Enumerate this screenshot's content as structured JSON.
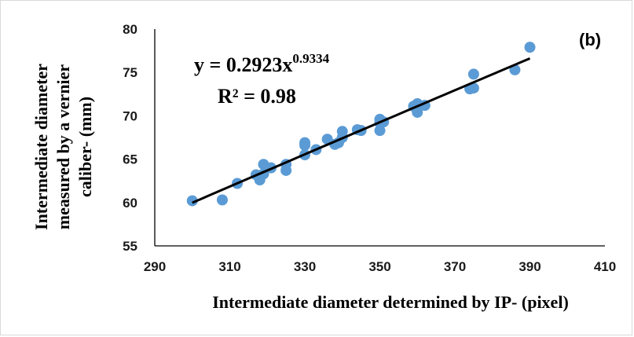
{
  "chart_data": {
    "type": "scatter",
    "panel_label": "(b)",
    "xlabel": "Intermediate diameter determined by IP- (pixel)",
    "ylabel_lines": [
      "Intermediate diameter",
      "measured  by a vernier",
      "caliber- (mm)"
    ],
    "xlim": [
      290,
      410
    ],
    "ylim": [
      55,
      80
    ],
    "x_ticks": [
      290,
      310,
      330,
      350,
      370,
      390,
      410
    ],
    "y_ticks": [
      55,
      60,
      65,
      70,
      75,
      80
    ],
    "grid": false,
    "series": [
      {
        "color": "#5b9bd5",
        "points": [
          [
            300,
            60.2
          ],
          [
            308,
            60.3
          ],
          [
            312,
            62.2
          ],
          [
            317,
            63.2
          ],
          [
            318,
            62.6
          ],
          [
            319,
            63.3
          ],
          [
            319,
            64.4
          ],
          [
            321,
            64.0
          ],
          [
            325,
            64.4
          ],
          [
            325,
            63.7
          ],
          [
            330,
            66.9
          ],
          [
            330,
            66.6
          ],
          [
            330,
            65.5
          ],
          [
            333,
            66.1
          ],
          [
            336,
            67.3
          ],
          [
            338,
            66.7
          ],
          [
            339,
            66.9
          ],
          [
            340,
            68.2
          ],
          [
            340,
            67.5
          ],
          [
            344,
            68.4
          ],
          [
            345,
            68.3
          ],
          [
            350,
            69.6
          ],
          [
            350,
            69.2
          ],
          [
            350,
            68.3
          ],
          [
            351,
            69.3
          ],
          [
            359,
            71.1
          ],
          [
            360,
            71.4
          ],
          [
            360,
            70.4
          ],
          [
            362,
            71.2
          ],
          [
            374,
            73.1
          ],
          [
            375,
            73.2
          ],
          [
            375,
            74.8
          ],
          [
            386,
            75.3
          ],
          [
            390,
            77.9
          ]
        ]
      }
    ],
    "trendline": {
      "type": "power",
      "a": 0.2923,
      "b": 0.9334,
      "x_range": [
        300,
        390
      ],
      "color": "#000000"
    },
    "equation": {
      "prefix": "y = 0.2923x",
      "exponent": "0.9334",
      "r2": "R² = 0.98"
    }
  }
}
